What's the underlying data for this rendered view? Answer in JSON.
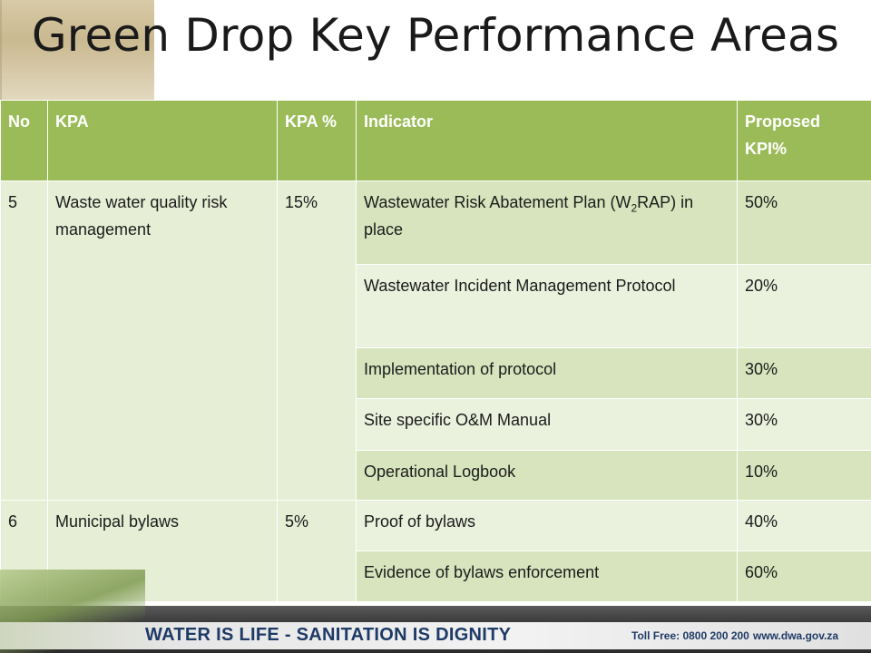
{
  "title": "Green Drop Key Performance Areas",
  "table": {
    "headers": {
      "no": "No",
      "kpa": "KPA",
      "kpa_pct": "KPA %",
      "indicator": "Indicator",
      "proposed_kpi": "Proposed KPI%"
    },
    "groups": [
      {
        "no": "5",
        "kpa": "Waste water quality risk management",
        "kpa_pct": "15%",
        "rows": [
          {
            "indicator_pre": "Wastewater Risk Abatement Plan (W",
            "indicator_sub": "2",
            "indicator_post": "RAP) in place",
            "kpi": "50%"
          },
          {
            "indicator": "Wastewater Incident Management Protocol",
            "kpi": "20%"
          },
          {
            "indicator": "Implementation of protocol",
            "kpi": "30%"
          },
          {
            "indicator": "Site specific O&M Manual",
            "kpi": "30%"
          },
          {
            "indicator": "Operational Logbook",
            "kpi": "10%"
          }
        ]
      },
      {
        "no": "6",
        "kpa": "Municipal bylaws",
        "kpa_pct": "5%",
        "rows": [
          {
            "indicator": "Proof of bylaws",
            "kpi": "40%"
          },
          {
            "indicator": "Evidence of bylaws enforcement",
            "kpi": "60%"
          }
        ]
      }
    ]
  },
  "footer": {
    "slogan": "WATER IS LIFE - SANITATION IS DIGNITY",
    "toll_free": "Toll Free: 0800 200 200",
    "website": "www.dwa.gov.za"
  },
  "colors": {
    "header_green": "#9bbb59",
    "row_dark": "#d7e4bd",
    "row_light": "#eaf1dd",
    "footer_text": "#1e3a66"
  }
}
